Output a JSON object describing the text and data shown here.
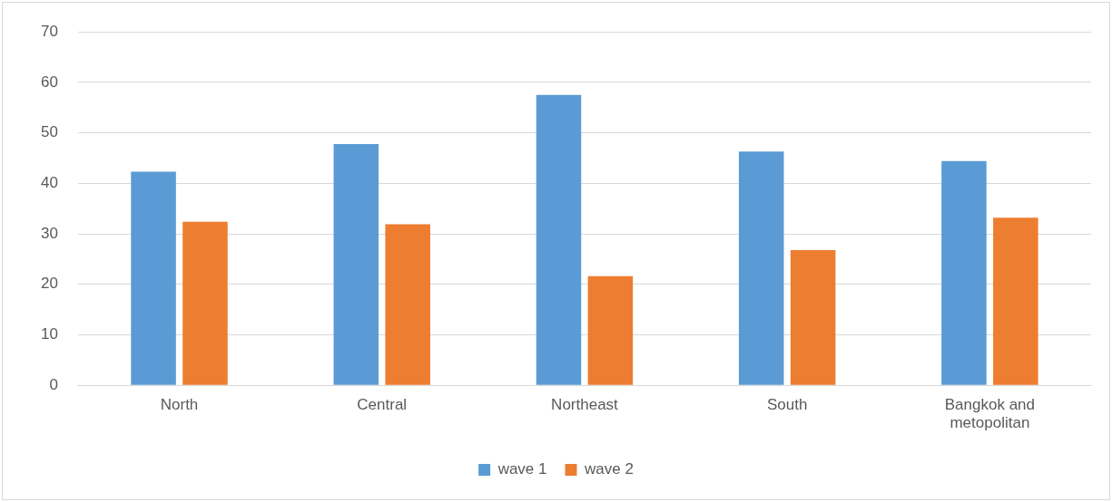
{
  "chart_data": {
    "type": "bar",
    "categories": [
      "North",
      "Central",
      "Northeast",
      "South",
      "Bangkok and metopolitan"
    ],
    "series": [
      {
        "name": "wave 1",
        "color": "#5b9bd5",
        "values": [
          42.3,
          47.8,
          57.5,
          46.3,
          44.4
        ]
      },
      {
        "name": "wave 2",
        "color": "#ed7d31",
        "values": [
          32.4,
          31.9,
          21.6,
          26.8,
          33.2
        ]
      }
    ],
    "ylim": [
      0,
      70
    ],
    "yticks": [
      0,
      10,
      20,
      30,
      40,
      50,
      60,
      70
    ],
    "grid": "y",
    "legend": "bottom"
  }
}
